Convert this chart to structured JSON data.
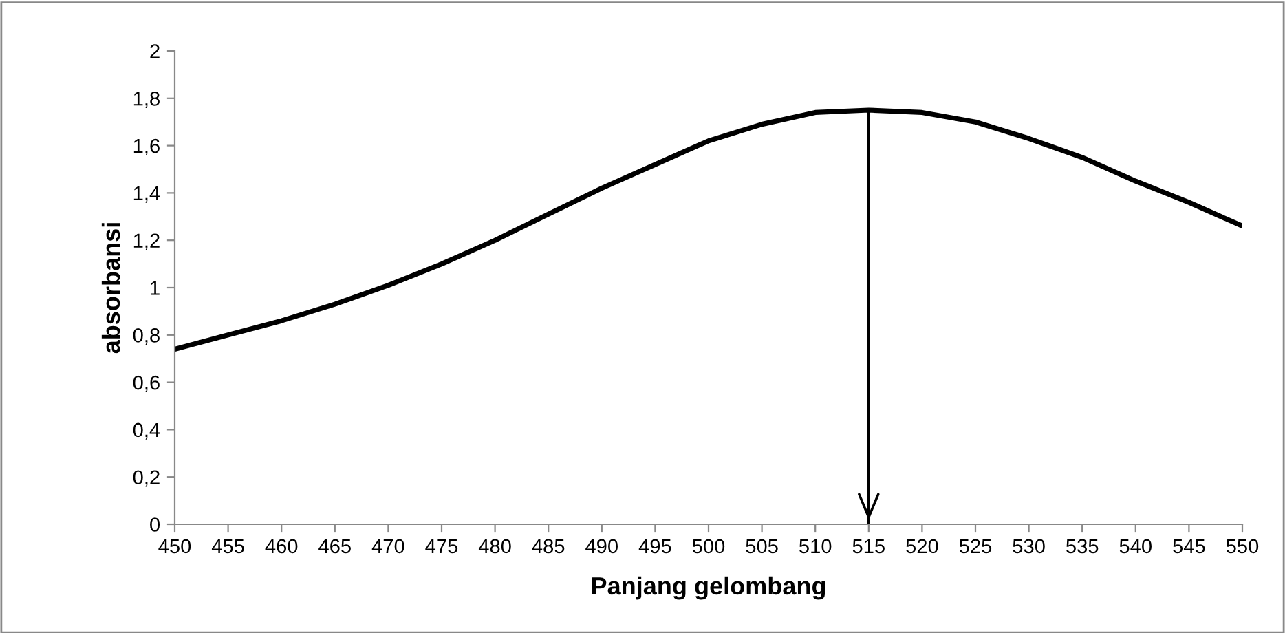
{
  "chart_data": {
    "type": "line",
    "xlabel": "Panjang gelombang",
    "ylabel": "absorbansi",
    "x": [
      450,
      455,
      460,
      465,
      470,
      475,
      480,
      485,
      490,
      495,
      500,
      505,
      510,
      515,
      520,
      525,
      530,
      535,
      540,
      545,
      550
    ],
    "series": [
      {
        "color": "#000000",
        "values": [
          0.74,
          0.8,
          0.86,
          0.93,
          1.01,
          1.1,
          1.2,
          1.31,
          1.42,
          1.52,
          1.62,
          1.69,
          1.74,
          1.75,
          1.74,
          1.7,
          1.63,
          1.55,
          1.45,
          1.36,
          1.26
        ]
      }
    ],
    "xlim": [
      450,
      550
    ],
    "ylim": [
      0,
      2
    ],
    "xticks": [
      450,
      455,
      460,
      465,
      470,
      475,
      480,
      485,
      490,
      495,
      500,
      505,
      510,
      515,
      520,
      525,
      530,
      535,
      540,
      545,
      550
    ],
    "yticks": [
      0,
      {
        "value": 0.2,
        "label": "0,2"
      },
      {
        "value": 0.4,
        "label": "0,4"
      },
      {
        "value": 0.6,
        "label": "0,6"
      },
      {
        "value": 0.8,
        "label": "0,8"
      },
      1,
      {
        "value": 1.2,
        "label": "1,2"
      },
      {
        "value": 1.4,
        "label": "1,4"
      },
      {
        "value": 1.6,
        "label": "1,6"
      },
      {
        "value": 1.8,
        "label": "1,8"
      },
      2
    ],
    "ref_lines": [
      {
        "axis": "x",
        "value": 515,
        "color": "#000000"
      }
    ],
    "grid": false,
    "legend": false,
    "marker": "none",
    "line_style": "solid"
  }
}
